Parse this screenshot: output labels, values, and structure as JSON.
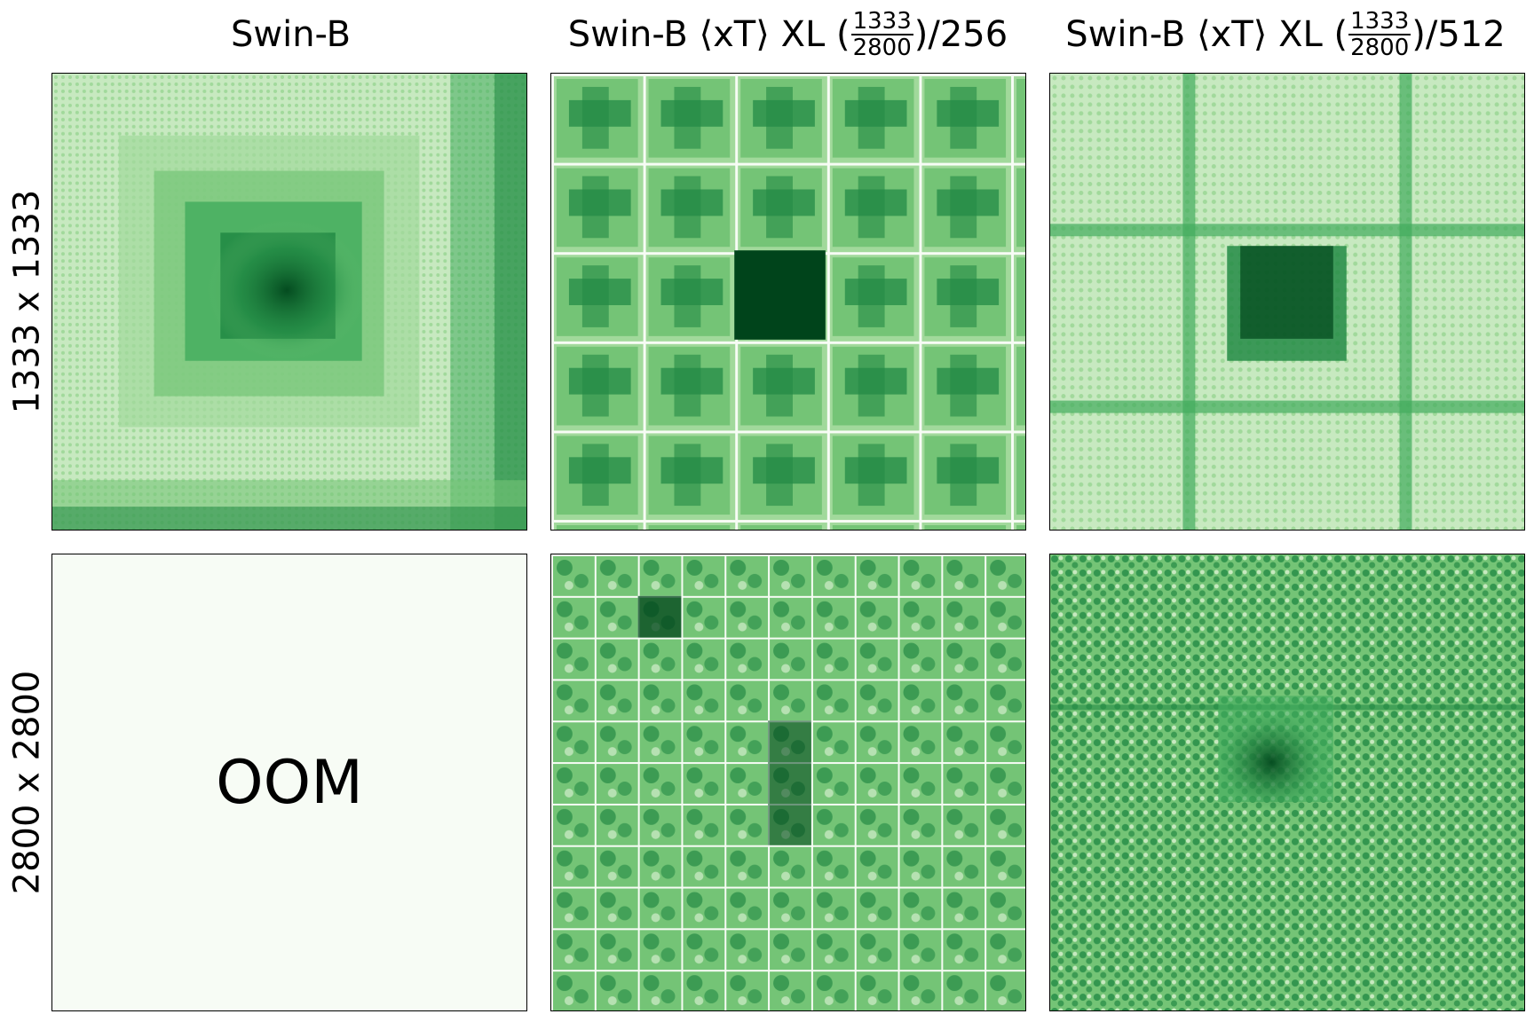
{
  "figure": {
    "columns": [
      {
        "label": "Swin-B",
        "prefix": "",
        "fraction_numerator": "",
        "fraction_denominator": "",
        "suffix": ""
      },
      {
        "label": "",
        "prefix": "Swin-B ⟨xT⟩ XL (",
        "fraction_numerator": "1333",
        "fraction_denominator": "2800",
        "suffix": ")/256"
      },
      {
        "label": "",
        "prefix": "Swin-B ⟨xT⟩ XL (",
        "fraction_numerator": "1333",
        "fraction_denominator": "2800",
        "suffix": ")/512"
      }
    ],
    "rows": [
      {
        "label": "1333 x 1333"
      },
      {
        "label": "2800 x 2800"
      }
    ],
    "oom_label": "OOM",
    "colormap": {
      "name": "Greens",
      "light": "#f7fcf5",
      "mid": "#74c476",
      "dark": "#00441b"
    }
  }
}
